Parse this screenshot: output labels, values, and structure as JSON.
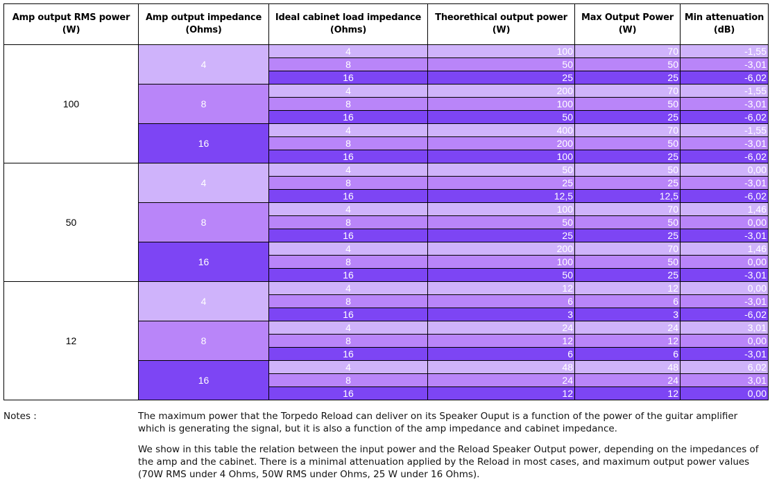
{
  "table": {
    "headers": [
      [
        "Amp output RMS power",
        "(W)"
      ],
      [
        "Amp output impedance",
        "(Ohms)"
      ],
      [
        "Ideal cabinet load impedance",
        "(Ohms)"
      ],
      [
        "Theorethical output power",
        "(W)"
      ],
      [
        "Max Output Power",
        "(W)"
      ],
      [
        "Min attenuation",
        "(dB)"
      ]
    ],
    "cell_colors": {
      "4": "#cfb3fb",
      "8": "#b985f9",
      "16": "#7d45f4"
    },
    "groups": [
      {
        "rms": "100",
        "amps": [
          {
            "amp": "4",
            "rows": [
              {
                "cab": "4",
                "theo": "100",
                "max": "70",
                "att": "-1,55"
              },
              {
                "cab": "8",
                "theo": "50",
                "max": "50",
                "att": "-3,01"
              },
              {
                "cab": "16",
                "theo": "25",
                "max": "25",
                "att": "-6,02"
              }
            ]
          },
          {
            "amp": "8",
            "rows": [
              {
                "cab": "4",
                "theo": "200",
                "max": "70",
                "att": "-1,55"
              },
              {
                "cab": "8",
                "theo": "100",
                "max": "50",
                "att": "-3,01"
              },
              {
                "cab": "16",
                "theo": "50",
                "max": "25",
                "att": "-6,02"
              }
            ]
          },
          {
            "amp": "16",
            "rows": [
              {
                "cab": "4",
                "theo": "400",
                "max": "70",
                "att": "-1,55"
              },
              {
                "cab": "8",
                "theo": "200",
                "max": "50",
                "att": "-3,01"
              },
              {
                "cab": "16",
                "theo": "100",
                "max": "25",
                "att": "-6,02"
              }
            ]
          }
        ]
      },
      {
        "rms": "50",
        "amps": [
          {
            "amp": "4",
            "rows": [
              {
                "cab": "4",
                "theo": "50",
                "max": "50",
                "att": "0,00"
              },
              {
                "cab": "8",
                "theo": "25",
                "max": "25",
                "att": "-3,01"
              },
              {
                "cab": "16",
                "theo": "12,5",
                "max": "12,5",
                "att": "-6,02"
              }
            ]
          },
          {
            "amp": "8",
            "rows": [
              {
                "cab": "4",
                "theo": "100",
                "max": "70",
                "att": "1,46"
              },
              {
                "cab": "8",
                "theo": "50",
                "max": "50",
                "att": "0,00"
              },
              {
                "cab": "16",
                "theo": "25",
                "max": "25",
                "att": "-3,01"
              }
            ]
          },
          {
            "amp": "16",
            "rows": [
              {
                "cab": "4",
                "theo": "200",
                "max": "70",
                "att": "1,46"
              },
              {
                "cab": "8",
                "theo": "100",
                "max": "50",
                "att": "0,00"
              },
              {
                "cab": "16",
                "theo": "50",
                "max": "25",
                "att": "-3,01"
              }
            ]
          }
        ]
      },
      {
        "rms": "12",
        "amps": [
          {
            "amp": "4",
            "rows": [
              {
                "cab": "4",
                "theo": "12",
                "max": "12",
                "att": "0,00"
              },
              {
                "cab": "8",
                "theo": "6",
                "max": "6",
                "att": "-3,01"
              },
              {
                "cab": "16",
                "theo": "3",
                "max": "3",
                "att": "-6,02"
              }
            ]
          },
          {
            "amp": "8",
            "rows": [
              {
                "cab": "4",
                "theo": "24",
                "max": "24",
                "att": "3,01"
              },
              {
                "cab": "8",
                "theo": "12",
                "max": "12",
                "att": "0,00"
              },
              {
                "cab": "16",
                "theo": "6",
                "max": "6",
                "att": "-3,01"
              }
            ]
          },
          {
            "amp": "16",
            "rows": [
              {
                "cab": "4",
                "theo": "48",
                "max": "48",
                "att": "6,02"
              },
              {
                "cab": "8",
                "theo": "24",
                "max": "24",
                "att": "3,01"
              },
              {
                "cab": "16",
                "theo": "12",
                "max": "12",
                "att": "0,00"
              }
            ]
          }
        ]
      }
    ]
  },
  "notes": {
    "label": "Notes :",
    "paragraphs": [
      "The maximum power that the Torpedo Reload can deliver on its Speaker Ouput is a function of the power of the guitar amplifier which is generating the signal, but it is also a function of the amp impedance and cabinet impedance.",
      "We show in this table the relation between the input power and the Reload Speaker Output power, depending on the impedances of the amp and the cabinet. There is a minimal attenuation applied by the Reload in most cases, and maximum output power values (70W RMS under 4 Ohms, 50W RMS under Ohms, 25 W under 16 Ohms)."
    ]
  }
}
